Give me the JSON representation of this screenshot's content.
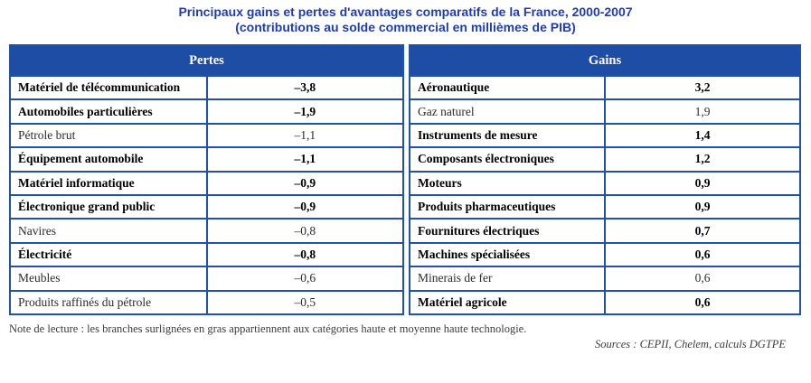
{
  "title": {
    "line1": "Principaux gains et pertes d'avantages comparatifs de la France, 2000-2007",
    "line2": "(contributions au solde commercial en millièmes de PIB)"
  },
  "table": {
    "pertes": {
      "header": "Pertes",
      "rows": [
        {
          "label": "Matériel de télécommunication",
          "value": "–3,8",
          "bold": true
        },
        {
          "label": "Automobiles particulières",
          "value": "–1,9",
          "bold": true
        },
        {
          "label": "Pétrole brut",
          "value": "–1,1",
          "bold": false
        },
        {
          "label": "Équipement automobile",
          "value": "–1,1",
          "bold": true
        },
        {
          "label": "Matériel informatique",
          "value": "–0,9",
          "bold": true
        },
        {
          "label": "Électronique grand public",
          "value": "–0,9",
          "bold": true
        },
        {
          "label": "Navires",
          "value": "–0,8",
          "bold": false
        },
        {
          "label": "Électricité",
          "value": "–0,8",
          "bold": true
        },
        {
          "label": "Meubles",
          "value": "–0,6",
          "bold": false
        },
        {
          "label": "Produits raffinés du pétrole",
          "value": "–0,5",
          "bold": false
        }
      ]
    },
    "gains": {
      "header": "Gains",
      "rows": [
        {
          "label": "Aéronautique",
          "value": "3,2",
          "bold": true
        },
        {
          "label": "Gaz naturel",
          "value": "1,9",
          "bold": false
        },
        {
          "label": "Instruments de mesure",
          "value": "1,4",
          "bold": true
        },
        {
          "label": "Composants électroniques",
          "value": "1,2",
          "bold": true
        },
        {
          "label": "Moteurs",
          "value": "0,9",
          "bold": true
        },
        {
          "label": "Produits pharmaceutiques",
          "value": "0,9",
          "bold": true
        },
        {
          "label": "Fournitures électriques",
          "value": "0,7",
          "bold": true
        },
        {
          "label": "Machines spécialisées",
          "value": "0,6",
          "bold": true
        },
        {
          "label": "Minerais de fer",
          "value": "0,6",
          "bold": false
        },
        {
          "label": "Matériel agricole",
          "value": "0,6",
          "bold": true
        }
      ]
    }
  },
  "footer": {
    "note": "Note de lecture : les branches surlignées en gras appartiennent aux catégories haute et moyenne haute technologie.",
    "sources": "Sources : CEPII, Chelem, calculs DGTPE"
  },
  "colors": {
    "header_bg": "#1e4da6",
    "border": "#2152aa",
    "title": "#1f3cb5"
  },
  "chart_data": {
    "type": "table",
    "title": "Principaux gains et pertes d'avantages comparatifs de la France, 2000-2007",
    "subtitle": "(contributions au solde commercial en millièmes de PIB)",
    "unit": "millièmes de PIB",
    "series": [
      {
        "name": "Pertes",
        "categories": [
          "Matériel de télécommunication",
          "Automobiles particulières",
          "Pétrole brut",
          "Équipement automobile",
          "Matériel informatique",
          "Électronique grand public",
          "Navires",
          "Électricité",
          "Meubles",
          "Produits raffinés du pétrole"
        ],
        "values": [
          -3.8,
          -1.9,
          -1.1,
          -1.1,
          -0.9,
          -0.9,
          -0.8,
          -0.8,
          -0.6,
          -0.5
        ],
        "high_tech_bold": [
          true,
          true,
          false,
          true,
          true,
          true,
          false,
          true,
          false,
          false
        ]
      },
      {
        "name": "Gains",
        "categories": [
          "Aéronautique",
          "Gaz naturel",
          "Instruments de mesure",
          "Composants électroniques",
          "Moteurs",
          "Produits pharmaceutiques",
          "Fournitures électriques",
          "Machines spécialisées",
          "Minerais de fer",
          "Matériel agricole"
        ],
        "values": [
          3.2,
          1.9,
          1.4,
          1.2,
          0.9,
          0.9,
          0.7,
          0.6,
          0.6,
          0.6
        ],
        "high_tech_bold": [
          true,
          false,
          true,
          true,
          true,
          true,
          true,
          true,
          false,
          true
        ]
      }
    ],
    "note": "Note de lecture : les branches surlignées en gras appartiennent aux catégories haute et moyenne haute technologie.",
    "sources": "Sources : CEPII, Chelem, calculs DGTPE"
  }
}
